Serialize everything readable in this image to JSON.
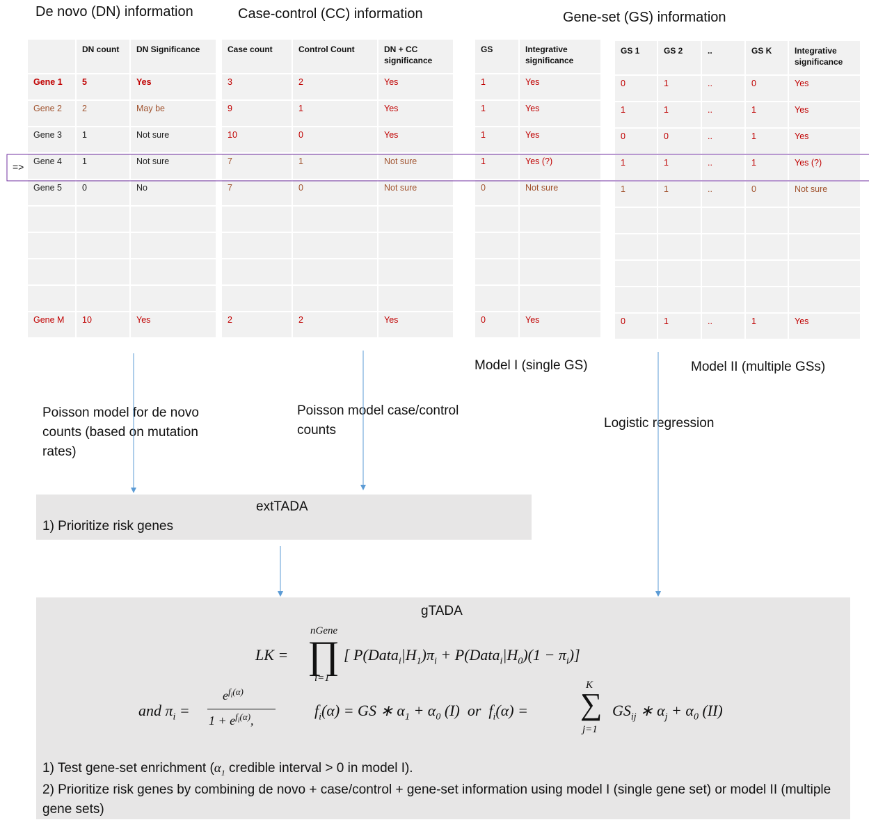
{
  "sections": {
    "dn_title": "De novo (DN) information",
    "cc_title": "Case-control (CC) information",
    "gs_title": "Gene-set (GS) information"
  },
  "dn_table": {
    "headers": [
      "",
      "DN count",
      "DN Significance"
    ],
    "rows": [
      [
        "Gene 1",
        "5",
        "Yes"
      ],
      [
        "Gene 2",
        "2",
        "May be"
      ],
      [
        "Gene 3",
        "1",
        "Not sure"
      ],
      [
        "Gene 4",
        "1",
        "Not sure"
      ],
      [
        "Gene 5",
        "0",
        "No"
      ],
      [
        "",
        "",
        ""
      ],
      [
        "",
        "",
        ""
      ],
      [
        "",
        "",
        ""
      ],
      [
        "",
        "",
        ""
      ],
      [
        "Gene M",
        "10",
        "Yes"
      ]
    ]
  },
  "cc_table": {
    "headers": [
      "Case count",
      "Control Count",
      "DN + CC significance"
    ],
    "rows": [
      [
        "3",
        "2",
        "Yes"
      ],
      [
        "9",
        "1",
        "Yes"
      ],
      [
        "10",
        "0",
        "Yes"
      ],
      [
        "7",
        "1",
        "Not sure"
      ],
      [
        "7",
        "0",
        "Not sure"
      ],
      [
        "",
        "",
        ""
      ],
      [
        "",
        "",
        ""
      ],
      [
        "",
        "",
        ""
      ],
      [
        "",
        "",
        ""
      ],
      [
        "2",
        "2",
        "Yes"
      ]
    ]
  },
  "gs1_table": {
    "headers": [
      "GS",
      "Integrative significance"
    ],
    "rows": [
      [
        "1",
        "Yes"
      ],
      [
        "1",
        "Yes"
      ],
      [
        "1",
        "Yes"
      ],
      [
        "1",
        "Yes (?)"
      ],
      [
        "0",
        "Not sure"
      ],
      [
        "",
        ""
      ],
      [
        "",
        ""
      ],
      [
        "",
        ""
      ],
      [
        "",
        ""
      ],
      [
        "0",
        "Yes"
      ]
    ]
  },
  "gs2_table": {
    "headers": [
      "GS 1",
      "GS 2",
      "..",
      "GS K",
      "Integrative significance"
    ],
    "rows": [
      [
        "0",
        "1",
        "..",
        "0",
        "Yes"
      ],
      [
        "1",
        "1",
        "..",
        "1",
        "Yes"
      ],
      [
        "0",
        "0",
        "..",
        "1",
        "Yes"
      ],
      [
        "1",
        "1",
        "..",
        "1",
        "Yes (?)"
      ],
      [
        "1",
        "1",
        "..",
        "0",
        "Not sure"
      ],
      [
        "",
        "",
        "",
        "",
        ""
      ],
      [
        "",
        "",
        "",
        "",
        ""
      ],
      [
        "",
        "",
        "",
        "",
        ""
      ],
      [
        "",
        "",
        "",
        "",
        ""
      ],
      [
        "0",
        "1",
        "..",
        "1",
        "Yes"
      ]
    ]
  },
  "row_marker": "=>",
  "model_labels": {
    "model1": "Model I (single GS)",
    "model2": "Model II (multiple GSs)"
  },
  "annotations": {
    "poisson_dn": "Poisson model for de novo counts (based on mutation rates)",
    "poisson_cc": "Poisson model case/control counts",
    "logistic": "Logistic regression"
  },
  "exttada": {
    "title": "extTADA",
    "item1": "1) Prioritize risk genes"
  },
  "gtada": {
    "title": "gTADA",
    "step1_a": "1) Test gene-set enrichment (",
    "step1_b": " credible interval > 0 in model I).",
    "step2": "2) Prioritize risk genes by combining de novo + case/control + gene-set information using model I (single gene set) or model II (multiple gene sets)"
  },
  "colors": {
    "red": "#c00000",
    "brown": "#a0522d",
    "arrow": "#5b9bd5",
    "highlight": "#7030a0",
    "cell": "#f1f1f1",
    "box": "#e7e6e6"
  }
}
